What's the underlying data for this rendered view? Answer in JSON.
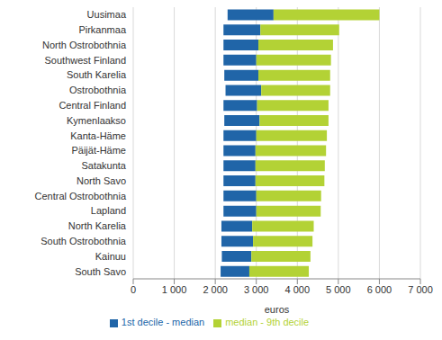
{
  "chart_data": {
    "type": "bar",
    "orientation": "horizontal",
    "x_label": "euros",
    "categories": [
      "Uusimaa",
      "Pirkanmaa",
      "North Ostrobothnia",
      "Southwest Finland",
      "South Karelia",
      "Ostrobothnia",
      "Central Finland",
      "Kymenlaakso",
      "Kanta-Häme",
      "Päijät-Häme",
      "Satakunta",
      "North Savo",
      "Central Ostrobothnia",
      "Lapland",
      "North Karelia",
      "South Ostrobothnia",
      "Kainuu",
      "South Savo"
    ],
    "series": [
      {
        "name": "1st decile - median",
        "color": "#2065a8",
        "values": [
          [
            2300,
            3420
          ],
          [
            2200,
            3100
          ],
          [
            2200,
            3050
          ],
          [
            2200,
            3000
          ],
          [
            2220,
            3050
          ],
          [
            2250,
            3120
          ],
          [
            2200,
            3020
          ],
          [
            2220,
            3080
          ],
          [
            2200,
            3000
          ],
          [
            2200,
            2980
          ],
          [
            2200,
            2980
          ],
          [
            2200,
            2980
          ],
          [
            2200,
            3000
          ],
          [
            2200,
            3000
          ],
          [
            2150,
            2900
          ],
          [
            2150,
            2920
          ],
          [
            2160,
            2880
          ],
          [
            2130,
            2830
          ]
        ]
      },
      {
        "name": "median - 9th decile",
        "color": "#b3d235",
        "values": [
          [
            3420,
            6000
          ],
          [
            3100,
            5020
          ],
          [
            3050,
            4870
          ],
          [
            3000,
            4820
          ],
          [
            3050,
            4800
          ],
          [
            3120,
            4800
          ],
          [
            3020,
            4760
          ],
          [
            3080,
            4760
          ],
          [
            3000,
            4720
          ],
          [
            2980,
            4700
          ],
          [
            2980,
            4670
          ],
          [
            2980,
            4660
          ],
          [
            3000,
            4580
          ],
          [
            3000,
            4570
          ],
          [
            2900,
            4400
          ],
          [
            2920,
            4370
          ],
          [
            2880,
            4320
          ],
          [
            2830,
            4280
          ]
        ]
      }
    ],
    "xlim": [
      0,
      7000
    ],
    "xticks": [
      0,
      {
        "value": 1000,
        "label": "1 000"
      },
      {
        "value": 2000,
        "label": "2 000"
      },
      {
        "value": 3000,
        "label": "3 000"
      },
      {
        "value": 4000,
        "label": "4 000"
      },
      {
        "value": 5000,
        "label": "5 000"
      },
      {
        "value": 6000,
        "label": "6 000"
      },
      {
        "value": 7000,
        "label": "7 000"
      }
    ],
    "grid": true,
    "legend": "bottom"
  }
}
